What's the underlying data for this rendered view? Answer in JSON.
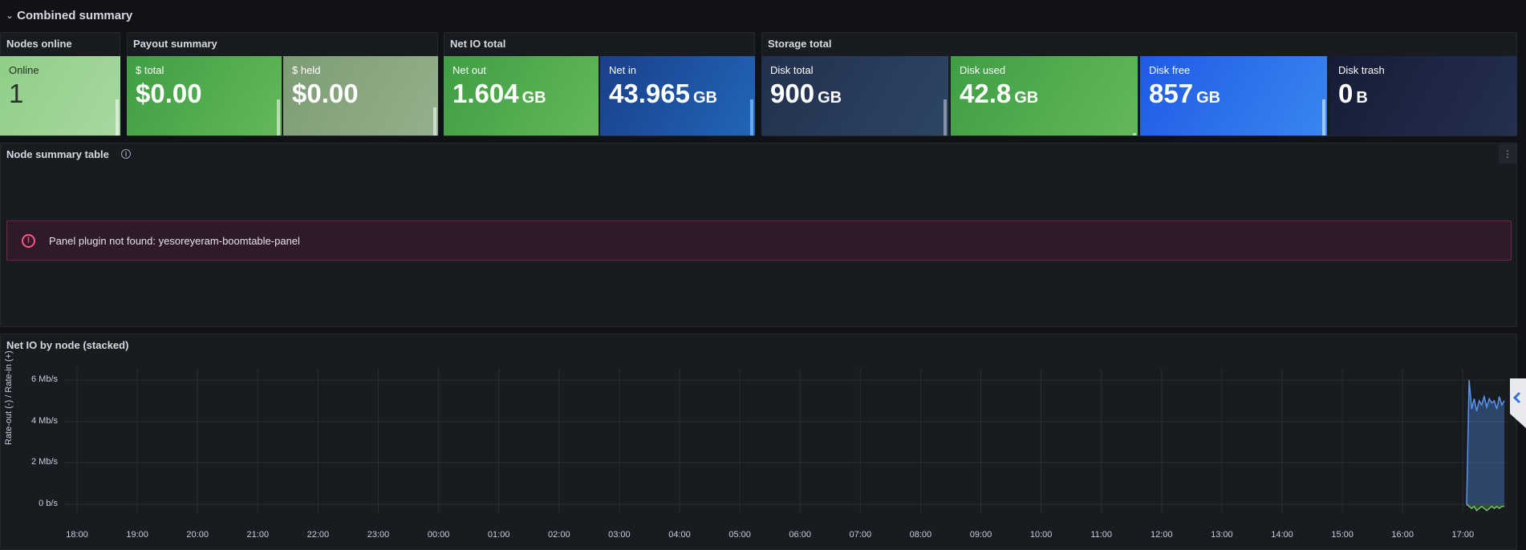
{
  "row": {
    "chevron": "⌄",
    "title": "Combined summary"
  },
  "panels": {
    "nodes_online": "Nodes online",
    "payout_summary": "Payout summary",
    "net_io_total": "Net IO total",
    "storage_total": "Storage total",
    "node_summary_table": "Node summary table",
    "net_io_by_node": "Net IO by node (stacked)"
  },
  "stats": [
    {
      "label": "Online",
      "value": "1",
      "unit": "",
      "color": "#a1d99b"
    },
    {
      "label": "$ total",
      "value": "$0.00",
      "unit": "",
      "color": "#4caf50"
    },
    {
      "label": "$ held",
      "value": "$0.00",
      "unit": "",
      "color": "#8fae86"
    },
    {
      "label": "Net out",
      "value": "1.604",
      "unit": "GB",
      "color": "#4caf50"
    },
    {
      "label": "Net in",
      "value": "43.965",
      "unit": "GB",
      "color": "#1e5aa8"
    },
    {
      "label": "Disk total",
      "value": "900",
      "unit": "GB",
      "color": "#2a3b5a"
    },
    {
      "label": "Disk used",
      "value": "42.8",
      "unit": "GB",
      "color": "#4caf50"
    },
    {
      "label": "Disk free",
      "value": "857",
      "unit": "GB",
      "color": "#2c6ef2"
    },
    {
      "label": "Disk trash",
      "value": "0",
      "unit": "B",
      "color": "#1c2542"
    }
  ],
  "error": {
    "message": "Panel plugin not found: yesoreyeram-boomtable-panel",
    "icon": "alert-circle-icon"
  },
  "chart_data": {
    "type": "area",
    "title": "Net IO by node (stacked)",
    "ylabel": "Rate-out (-) / Rate-in (+)",
    "yticks": [
      "6 Mb/s",
      "4 Mb/s",
      "2 Mb/s",
      "0 b/s"
    ],
    "xticks": [
      "18:00",
      "19:00",
      "20:00",
      "21:00",
      "22:00",
      "23:00",
      "00:00",
      "01:00",
      "02:00",
      "03:00",
      "04:00",
      "05:00",
      "06:00",
      "07:00",
      "08:00",
      "09:00",
      "10:00",
      "11:00",
      "12:00",
      "13:00",
      "14:00",
      "15:00",
      "16:00",
      "17:00"
    ],
    "series": [
      {
        "values_mbps": [
          0,
          6.0,
          4.6,
          5.1,
          4.5,
          5.0,
          4.8,
          5.2,
          4.7,
          5.1,
          4.9,
          5.0,
          4.6,
          5.2,
          4.8,
          5.0
        ],
        "color": "#5794f2"
      },
      {
        "values_mbps": [
          0,
          -0.1,
          -0.2,
          -0.1,
          -0.3,
          -0.2,
          -0.1,
          -0.2,
          -0.3,
          -0.2,
          -0.1,
          -0.2,
          -0.1,
          -0.2,
          -0.1,
          -0.1
        ],
        "color": "#73bf69"
      }
    ],
    "x_start_time": "17:02",
    "x_end_time": "17:42"
  }
}
